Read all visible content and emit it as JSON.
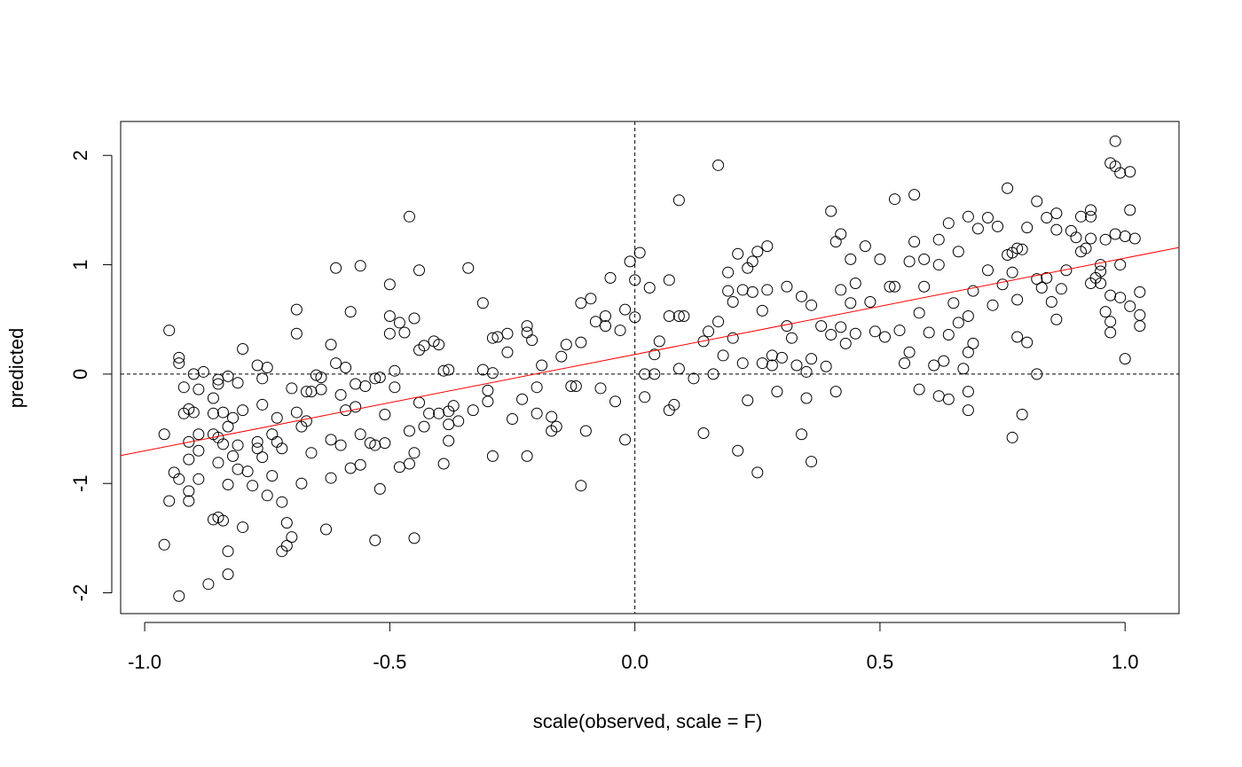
{
  "chart_data": {
    "type": "scatter",
    "xlabel": "scale(observed, scale = F)",
    "ylabel": "predicted",
    "xlim": [
      -1.049,
      1.11
    ],
    "ylim": [
      -2.19,
      2.31
    ],
    "xticks": [
      {
        "value": -1,
        "label": "-1.0"
      },
      -0.5,
      {
        "value": 0,
        "label": "0.0"
      },
      0.5,
      {
        "value": 1,
        "label": "1.0"
      }
    ],
    "yticks": [
      -2,
      -1,
      0,
      1,
      2
    ],
    "color": "#000000",
    "hlines": [
      0
    ],
    "vlines": [
      0
    ],
    "fit_line": {
      "x": [
        -1.049,
        1.11
      ],
      "y": [
        -0.745,
        1.158
      ],
      "color": "#ff0000"
    },
    "points": [
      [
        -0.96,
        -1.56
      ],
      [
        -0.96,
        -0.55
      ],
      [
        -0.95,
        -1.16
      ],
      [
        -0.95,
        0.4
      ],
      [
        -0.94,
        -0.9
      ],
      [
        -0.93,
        0.15
      ],
      [
        -0.93,
        0.1
      ],
      [
        -0.93,
        -2.03
      ],
      [
        -0.93,
        -0.96
      ],
      [
        -0.92,
        -0.12
      ],
      [
        -0.92,
        -0.36
      ],
      [
        -0.91,
        -0.78
      ],
      [
        -0.91,
        -1.16
      ],
      [
        -0.91,
        -1.07
      ],
      [
        -0.91,
        -0.32
      ],
      [
        -0.91,
        -0.62
      ],
      [
        -0.9,
        0.0
      ],
      [
        -0.9,
        -0.35
      ],
      [
        -0.89,
        -0.55
      ],
      [
        -0.89,
        -0.7
      ],
      [
        -0.89,
        -0.96
      ],
      [
        -0.89,
        -0.14
      ],
      [
        -0.88,
        0.02
      ],
      [
        -0.87,
        -1.92
      ],
      [
        -0.86,
        -1.33
      ],
      [
        -0.86,
        -0.55
      ],
      [
        -0.86,
        -0.36
      ],
      [
        -0.86,
        -0.22
      ],
      [
        -0.85,
        -1.31
      ],
      [
        -0.85,
        -0.81
      ],
      [
        -0.85,
        -0.58
      ],
      [
        -0.85,
        -0.05
      ],
      [
        -0.85,
        -0.09
      ],
      [
        -0.84,
        -1.34
      ],
      [
        -0.84,
        -0.35
      ],
      [
        -0.84,
        -0.64
      ],
      [
        -0.83,
        -0.48
      ],
      [
        -0.83,
        -1.62
      ],
      [
        -0.83,
        -1.01
      ],
      [
        -0.83,
        -1.83
      ],
      [
        -0.83,
        -0.02
      ],
      [
        -0.82,
        -0.75
      ],
      [
        -0.82,
        -0.4
      ],
      [
        -0.81,
        -0.87
      ],
      [
        -0.81,
        -0.65
      ],
      [
        -0.81,
        -0.08
      ],
      [
        -0.8,
        0.23
      ],
      [
        -0.8,
        -1.4
      ],
      [
        -0.8,
        -0.33
      ],
      [
        -0.79,
        -0.89
      ],
      [
        -0.78,
        -1.02
      ],
      [
        -0.77,
        -0.68
      ],
      [
        -0.77,
        -0.62
      ],
      [
        -0.77,
        0.08
      ],
      [
        -0.76,
        -0.04
      ],
      [
        -0.76,
        -0.28
      ],
      [
        -0.76,
        -0.76
      ],
      [
        -0.75,
        -1.11
      ],
      [
        -0.75,
        0.06
      ],
      [
        -0.74,
        -0.93
      ],
      [
        -0.74,
        -0.55
      ],
      [
        -0.73,
        -0.4
      ],
      [
        -0.73,
        -0.62
      ],
      [
        -0.72,
        -1.17
      ],
      [
        -0.72,
        -1.62
      ],
      [
        -0.72,
        -0.68
      ],
      [
        -0.71,
        -1.57
      ],
      [
        -0.71,
        -1.36
      ],
      [
        -0.7,
        -0.13
      ],
      [
        -0.7,
        -1.49
      ],
      [
        -0.69,
        0.59
      ],
      [
        -0.69,
        0.37
      ],
      [
        -0.69,
        -0.35
      ],
      [
        -0.68,
        -0.48
      ],
      [
        -0.68,
        -1.0
      ],
      [
        -0.67,
        -0.43
      ],
      [
        -0.67,
        -0.16
      ],
      [
        -0.66,
        -0.72
      ],
      [
        -0.66,
        -0.16
      ],
      [
        -0.65,
        -0.01
      ],
      [
        -0.64,
        -0.03
      ],
      [
        -0.64,
        -0.14
      ],
      [
        -0.63,
        -1.42
      ],
      [
        -0.62,
        -0.95
      ],
      [
        -0.62,
        -0.6
      ],
      [
        -0.62,
        0.27
      ],
      [
        -0.61,
        0.97
      ],
      [
        -0.61,
        0.1
      ],
      [
        -0.6,
        -0.19
      ],
      [
        -0.6,
        -0.65
      ],
      [
        -0.59,
        -0.33
      ],
      [
        -0.59,
        0.06
      ],
      [
        -0.58,
        -0.86
      ],
      [
        -0.58,
        0.57
      ],
      [
        -0.57,
        -0.09
      ],
      [
        -0.57,
        -0.3
      ],
      [
        -0.56,
        0.99
      ],
      [
        -0.56,
        -0.55
      ],
      [
        -0.56,
        -0.83
      ],
      [
        -0.55,
        -0.11
      ],
      [
        -0.54,
        -0.63
      ],
      [
        -0.53,
        -0.04
      ],
      [
        -0.53,
        -0.65
      ],
      [
        -0.52,
        -0.03
      ],
      [
        -0.51,
        -0.63
      ],
      [
        -0.51,
        -0.37
      ],
      [
        -0.52,
        -1.05
      ],
      [
        -0.53,
        -1.52
      ],
      [
        -0.49,
        -0.12
      ],
      [
        -0.48,
        -0.85
      ],
      [
        -0.5,
        0.53
      ],
      [
        -0.5,
        0.82
      ],
      [
        -0.5,
        0.37
      ],
      [
        -0.46,
        -0.52
      ],
      [
        -0.49,
        0.03
      ],
      [
        -0.44,
        -0.26
      ],
      [
        -0.48,
        0.47
      ],
      [
        -0.47,
        0.38
      ],
      [
        -0.42,
        -0.36
      ],
      [
        -0.41,
        0.3
      ],
      [
        -0.46,
        -0.82
      ],
      [
        -0.46,
        1.44
      ],
      [
        -0.45,
        0.51
      ],
      [
        -0.45,
        -0.72
      ],
      [
        -0.45,
        -1.5
      ],
      [
        -0.44,
        0.22
      ],
      [
        -0.44,
        0.95
      ],
      [
        -0.43,
        0.26
      ],
      [
        -0.43,
        -0.48
      ],
      [
        -0.4,
        -0.36
      ],
      [
        -0.38,
        -0.46
      ],
      [
        -0.39,
        0.03
      ],
      [
        -0.39,
        -0.82
      ],
      [
        -0.4,
        0.27
      ],
      [
        -0.38,
        -0.34
      ],
      [
        -0.37,
        -0.29
      ],
      [
        -0.38,
        0.04
      ],
      [
        -0.38,
        -0.61
      ],
      [
        -0.36,
        -0.43
      ],
      [
        -0.34,
        0.97
      ],
      [
        -0.33,
        -0.33
      ],
      [
        -0.31,
        0.04
      ],
      [
        -0.31,
        0.65
      ],
      [
        -0.3,
        -0.25
      ],
      [
        -0.29,
        0.01
      ],
      [
        -0.29,
        0.33
      ],
      [
        -0.3,
        -0.15
      ],
      [
        -0.28,
        0.34
      ],
      [
        -0.29,
        -0.75
      ],
      [
        -0.26,
        0.37
      ],
      [
        -0.26,
        0.2
      ],
      [
        -0.25,
        -0.41
      ],
      [
        -0.23,
        -0.23
      ],
      [
        -0.22,
        0.38
      ],
      [
        -0.2,
        -0.36
      ],
      [
        -0.22,
        -0.75
      ],
      [
        -0.22,
        0.44
      ],
      [
        -0.21,
        0.31
      ],
      [
        -0.2,
        -0.12
      ],
      [
        -0.19,
        0.08
      ],
      [
        -0.17,
        -0.39
      ],
      [
        -0.17,
        -0.52
      ],
      [
        -0.16,
        -0.48
      ],
      [
        -0.15,
        0.16
      ],
      [
        -0.14,
        0.27
      ],
      [
        -0.13,
        -0.11
      ],
      [
        -0.12,
        -0.11
      ],
      [
        -0.11,
        -1.02
      ],
      [
        -0.11,
        0.29
      ],
      [
        -0.11,
        0.65
      ],
      [
        -0.1,
        -0.52
      ],
      [
        -0.09,
        0.69
      ],
      [
        -0.08,
        0.48
      ],
      [
        -0.07,
        -0.13
      ],
      [
        -0.06,
        0.44
      ],
      [
        -0.06,
        0.53
      ],
      [
        -0.05,
        0.88
      ],
      [
        -0.04,
        -0.25
      ],
      [
        -0.03,
        0.4
      ],
      [
        -0.02,
        -0.6
      ],
      [
        -0.02,
        0.59
      ],
      [
        -0.01,
        1.03
      ],
      [
        0.0,
        0.52
      ],
      [
        0.0,
        0.86
      ],
      [
        0.01,
        1.11
      ],
      [
        0.02,
        -0.21
      ],
      [
        0.02,
        0.0
      ],
      [
        0.03,
        0.79
      ],
      [
        0.04,
        0.0
      ],
      [
        0.04,
        0.18
      ],
      [
        0.05,
        0.3
      ],
      [
        0.07,
        0.86
      ],
      [
        0.07,
        -0.33
      ],
      [
        0.07,
        0.53
      ],
      [
        0.08,
        -0.28
      ],
      [
        0.09,
        1.59
      ],
      [
        0.09,
        0.05
      ],
      [
        0.09,
        0.53
      ],
      [
        0.1,
        0.53
      ],
      [
        0.12,
        -0.04
      ],
      [
        0.14,
        0.3
      ],
      [
        0.14,
        -0.54
      ],
      [
        0.15,
        0.39
      ],
      [
        0.16,
        0.0
      ],
      [
        0.17,
        0.48
      ],
      [
        0.17,
        1.91
      ],
      [
        0.18,
        0.17
      ],
      [
        0.19,
        0.93
      ],
      [
        0.19,
        0.76
      ],
      [
        0.2,
        0.66
      ],
      [
        0.2,
        0.33
      ],
      [
        0.21,
        -0.7
      ],
      [
        0.21,
        1.1
      ],
      [
        0.22,
        0.1
      ],
      [
        0.22,
        0.77
      ],
      [
        0.23,
        -0.24
      ],
      [
        0.23,
        0.97
      ],
      [
        0.24,
        1.03
      ],
      [
        0.24,
        0.75
      ],
      [
        0.25,
        -0.9
      ],
      [
        0.25,
        1.12
      ],
      [
        0.26,
        0.58
      ],
      [
        0.26,
        0.1
      ],
      [
        0.27,
        1.17
      ],
      [
        0.27,
        0.77
      ],
      [
        0.28,
        0.17
      ],
      [
        0.28,
        0.08
      ],
      [
        0.29,
        -0.16
      ],
      [
        0.3,
        0.15
      ],
      [
        0.31,
        0.44
      ],
      [
        0.31,
        0.8
      ],
      [
        0.32,
        0.33
      ],
      [
        0.33,
        0.08
      ],
      [
        0.34,
        0.71
      ],
      [
        0.34,
        -0.55
      ],
      [
        0.35,
        -0.22
      ],
      [
        0.35,
        0.02
      ],
      [
        0.36,
        0.63
      ],
      [
        0.36,
        0.14
      ],
      [
        0.36,
        -0.8
      ],
      [
        0.38,
        0.44
      ],
      [
        0.39,
        0.07
      ],
      [
        0.4,
        1.49
      ],
      [
        0.4,
        0.36
      ],
      [
        0.41,
        1.21
      ],
      [
        0.41,
        -0.16
      ],
      [
        0.42,
        0.77
      ],
      [
        0.42,
        1.28
      ],
      [
        0.42,
        0.43
      ],
      [
        0.43,
        0.28
      ],
      [
        0.44,
        1.05
      ],
      [
        0.44,
        0.65
      ],
      [
        0.45,
        0.83
      ],
      [
        0.45,
        0.37
      ],
      [
        0.47,
        1.17
      ],
      [
        0.48,
        0.66
      ],
      [
        0.49,
        0.39
      ],
      [
        0.5,
        1.05
      ],
      [
        0.51,
        0.34
      ],
      [
        0.52,
        0.8
      ],
      [
        0.53,
        1.6
      ],
      [
        0.53,
        0.8
      ],
      [
        0.54,
        0.4
      ],
      [
        0.55,
        0.1
      ],
      [
        0.56,
        1.03
      ],
      [
        0.56,
        0.2
      ],
      [
        0.57,
        1.21
      ],
      [
        0.58,
        0.56
      ],
      [
        0.57,
        1.64
      ],
      [
        0.59,
        1.05
      ],
      [
        0.59,
        0.8
      ],
      [
        0.58,
        -0.14
      ],
      [
        0.6,
        0.38
      ],
      [
        0.61,
        0.08
      ],
      [
        0.62,
        1.0
      ],
      [
        0.62,
        1.23
      ],
      [
        0.63,
        0.12
      ],
      [
        0.64,
        0.36
      ],
      [
        0.64,
        1.38
      ],
      [
        0.65,
        0.65
      ],
      [
        0.62,
        -0.2
      ],
      [
        0.66,
        0.47
      ],
      [
        0.66,
        1.12
      ],
      [
        0.67,
        0.05
      ],
      [
        0.64,
        -0.23
      ],
      [
        0.68,
        1.44
      ],
      [
        0.68,
        0.2
      ],
      [
        0.68,
        0.53
      ],
      [
        0.69,
        0.76
      ],
      [
        0.69,
        0.28
      ],
      [
        0.68,
        -0.16
      ],
      [
        0.7,
        1.33
      ],
      [
        0.68,
        -0.33
      ],
      [
        0.72,
        0.95
      ],
      [
        0.73,
        0.63
      ],
      [
        0.74,
        1.35
      ],
      [
        0.72,
        1.43
      ],
      [
        0.75,
        0.82
      ],
      [
        0.76,
        1.09
      ],
      [
        0.77,
        1.11
      ],
      [
        0.77,
        0.93
      ],
      [
        0.78,
        1.15
      ],
      [
        0.78,
        0.68
      ],
      [
        0.76,
        1.7
      ],
      [
        0.79,
        1.14
      ],
      [
        0.8,
        1.34
      ],
      [
        0.77,
        -0.58
      ],
      [
        0.78,
        0.34
      ],
      [
        0.82,
        0.87
      ],
      [
        0.83,
        0.79
      ],
      [
        0.8,
        0.29
      ],
      [
        0.79,
        -0.37
      ],
      [
        0.84,
        0.88
      ],
      [
        0.85,
        0.66
      ],
      [
        0.86,
        1.32
      ],
      [
        0.82,
        0.0
      ],
      [
        0.82,
        1.58
      ],
      [
        0.84,
        1.43
      ],
      [
        0.86,
        1.47
      ],
      [
        0.87,
        0.78
      ],
      [
        0.88,
        0.95
      ],
      [
        0.89,
        1.31
      ],
      [
        0.9,
        1.25
      ],
      [
        0.86,
        0.5
      ],
      [
        0.91,
        1.44
      ],
      [
        0.91,
        1.12
      ],
      [
        0.92,
        1.15
      ],
      [
        0.93,
        1.24
      ],
      [
        0.93,
        1.44
      ],
      [
        0.94,
        0.88
      ],
      [
        0.93,
        0.83
      ],
      [
        0.93,
        1.5
      ],
      [
        0.95,
        0.83
      ],
      [
        0.95,
        0.94
      ],
      [
        0.96,
        0.57
      ],
      [
        0.96,
        1.23
      ],
      [
        0.97,
        1.93
      ],
      [
        0.97,
        0.38
      ],
      [
        0.97,
        0.48
      ],
      [
        0.98,
        1.28
      ],
      [
        0.98,
        1.9
      ],
      [
        0.98,
        2.13
      ],
      [
        0.99,
        1.0
      ],
      [
        0.99,
        1.84
      ],
      [
        1.0,
        1.26
      ],
      [
        1.0,
        0.14
      ],
      [
        1.01,
        1.85
      ],
      [
        1.01,
        1.5
      ],
      [
        1.01,
        0.62
      ],
      [
        1.02,
        1.24
      ],
      [
        1.03,
        0.54
      ],
      [
        1.03,
        0.44
      ],
      [
        1.03,
        0.75
      ],
      [
        0.99,
        0.7
      ],
      [
        0.95,
        1.0
      ],
      [
        0.97,
        0.72
      ]
    ]
  }
}
